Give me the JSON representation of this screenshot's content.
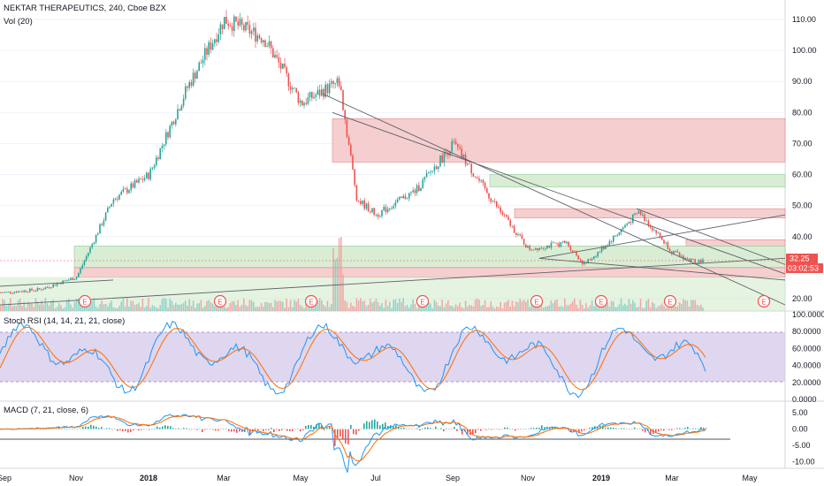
{
  "header": {
    "symbol_line": "NEKTAR THERAPEUTICS, 240, Cboe BZX",
    "volume_label": "Vol (20)"
  },
  "price_panel": {
    "price_ticks": [
      "110.00",
      "100.00",
      "90.00",
      "80.00",
      "70.00",
      "60.00",
      "50.00",
      "40.00",
      "20.00"
    ],
    "price_tick_values": [
      110,
      100,
      90,
      80,
      70,
      60,
      50,
      40,
      20
    ],
    "last_price": "32.25",
    "countdown": "03:02:53",
    "last_price_color": "#ef5350",
    "earnings_marker": "E",
    "earnings_count": 8
  },
  "rsi_panel": {
    "title": "Stoch RSI (14, 14, 21, 21, close)",
    "ticks": [
      "100.0000",
      "80.0000",
      "60.0000",
      "40.0000",
      "20.0000",
      "0.0000"
    ],
    "band_color": "#b39ddb"
  },
  "macd_panel": {
    "title": "MACD (7, 21, close, 6)",
    "ticks": [
      "5.00",
      "0.00",
      "-5.00",
      "-10.00"
    ]
  },
  "x_axis": {
    "labels": [
      "Sep",
      "Nov",
      "2018",
      "Mar",
      "May",
      "Jul",
      "Sep",
      "Nov",
      "2019",
      "Mar",
      "May"
    ]
  },
  "colors": {
    "up": "#26a69a",
    "down": "#ef5350",
    "supply_zone": "#f4c7c7",
    "demand_zone": "#d3ebcd",
    "macd_line": "#2196f3",
    "signal_line": "#ff6d00"
  },
  "chart_data": {
    "type": "candlestick",
    "title": "NEKTAR THERAPEUTICS, 240, Cboe BZX",
    "ylim": [
      15,
      114
    ],
    "price_path": [
      {
        "x": "Sep 2017",
        "y": 22
      },
      {
        "x": "Oct 2017",
        "y": 23
      },
      {
        "x": "Nov 2017",
        "y": 27
      },
      {
        "x": "Dec 2017",
        "y": 52
      },
      {
        "x": "2018",
        "y": 60
      },
      {
        "x": "Feb 2018",
        "y": 88
      },
      {
        "x": "Mar 2018",
        "y": 110
      },
      {
        "x": "Apr 2018",
        "y": 104
      },
      {
        "x": "May 2018",
        "y": 83
      },
      {
        "x": "Jun 2018",
        "y": 90
      },
      {
        "x": "Jun 2018",
        "y": 52
      },
      {
        "x": "Jul 2018",
        "y": 47
      },
      {
        "x": "Aug 2018",
        "y": 55
      },
      {
        "x": "Sep 2018",
        "y": 70
      },
      {
        "x": "Oct 2018",
        "y": 52
      },
      {
        "x": "Nov 2018",
        "y": 36
      },
      {
        "x": "Dec 2018",
        "y": 38
      },
      {
        "x": "Dec 2018",
        "y": 31
      },
      {
        "x": "2019",
        "y": 36
      },
      {
        "x": "Feb 2019",
        "y": 48
      },
      {
        "x": "Mar 2019",
        "y": 35
      },
      {
        "x": "Mar 2019",
        "y": 32.25
      }
    ],
    "last_price": 32.25,
    "zones": [
      {
        "kind": "supply",
        "from": 64,
        "to": 78
      },
      {
        "kind": "demand",
        "from": 56,
        "to": 60
      },
      {
        "kind": "supply",
        "from": 46,
        "to": 49
      },
      {
        "kind": "supply",
        "from": 37,
        "to": 39
      },
      {
        "kind": "demand",
        "from": 30,
        "to": 37
      },
      {
        "kind": "supply",
        "from": 27,
        "to": 30
      }
    ],
    "stoch_rsi": {
      "ylim": [
        0,
        100
      ],
      "band": [
        20,
        80
      ]
    },
    "macd": {
      "ylim": [
        -12,
        8
      ]
    }
  }
}
